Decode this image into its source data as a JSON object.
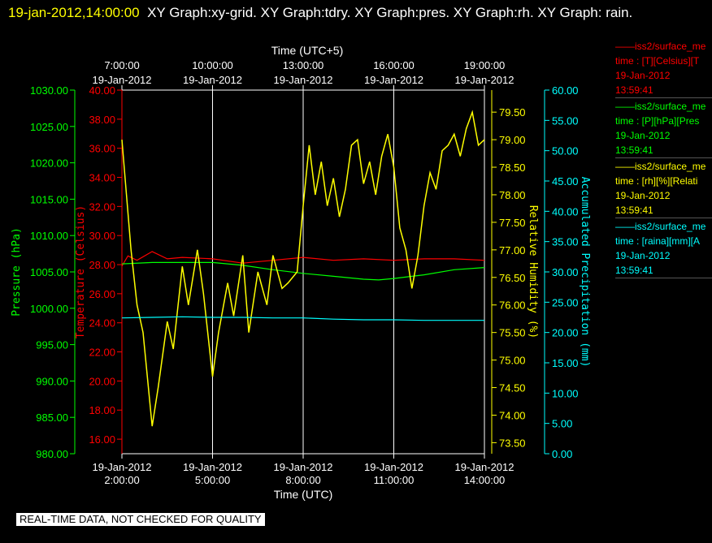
{
  "header": {
    "timestamp": "19-jan-2012,14:00:00",
    "title": "XY Graph:xy-grid.  XY Graph:tdry.  XY Graph:pres.  XY Graph:rh.  XY Graph: rain."
  },
  "footer": {
    "notice": "REAL-TIME DATA, NOT CHECKED FOR QUALITY"
  },
  "colors": {
    "temperature": "#ff0000",
    "pressure": "#00ff00",
    "humidity": "#ffff00",
    "precip": "#00ffff",
    "grid": "#ffffff"
  },
  "legend": [
    {
      "line1": "iss2/surface_me",
      "line2": "time : [T][Celsius][T",
      "line3": "19-Jan-2012",
      "line4": "13:59:41",
      "color": "#ff0000"
    },
    {
      "line1": "iss2/surface_me",
      "line2": "time : [P][hPa][Pres",
      "line3": "19-Jan-2012",
      "line4": "13:59:41",
      "color": "#00ff00"
    },
    {
      "line1": "iss2/surface_me",
      "line2": "time : [rh][%][Relati",
      "line3": "19-Jan-2012",
      "line4": "13:59:41",
      "color": "#ffff00"
    },
    {
      "line1": "iss2/surface_me",
      "line2": "time : [raina][mm][A",
      "line3": "19-Jan-2012",
      "line4": "13:59:41",
      "color": "#00ffff"
    }
  ],
  "chart_data": {
    "type": "line",
    "xlabel_bottom": "Time (UTC)",
    "xlabel_top": "Time (UTC+5)",
    "x_range_hours_utc": [
      2,
      14
    ],
    "x_ticks_bottom": [
      {
        "h": 2,
        "date": "19-Jan-2012",
        "time": "2:00:00"
      },
      {
        "h": 5,
        "date": "19-Jan-2012",
        "time": "5:00:00"
      },
      {
        "h": 8,
        "date": "19-Jan-2012",
        "time": "8:00:00"
      },
      {
        "h": 11,
        "date": "19-Jan-2012",
        "time": "11:00:00"
      },
      {
        "h": 14,
        "date": "19-Jan-2012",
        "time": "14:00:00"
      }
    ],
    "x_ticks_top": [
      {
        "h": 2,
        "date": "19-Jan-2012",
        "time": "7:00:00"
      },
      {
        "h": 5,
        "date": "19-Jan-2012",
        "time": "10:00:00"
      },
      {
        "h": 8,
        "date": "19-Jan-2012",
        "time": "13:00:00"
      },
      {
        "h": 11,
        "date": "19-Jan-2012",
        "time": "16:00:00"
      },
      {
        "h": 14,
        "date": "19-Jan-2012",
        "time": "19:00:00"
      }
    ],
    "axes": {
      "pressure": {
        "label": "Pressure (hPa)",
        "ylim": [
          980,
          1030
        ],
        "ticks": [
          "980.00",
          "985.00",
          "990.00",
          "995.00",
          "1000.00",
          "1005.00",
          "1010.00",
          "1015.00",
          "1020.00",
          "1025.00",
          "1030.00"
        ]
      },
      "temperature": {
        "label": "Temperature (Celsius)",
        "ylim": [
          15,
          40
        ],
        "ticks": [
          "16.00",
          "18.00",
          "20.00",
          "22.00",
          "24.00",
          "26.00",
          "28.00",
          "30.00",
          "32.00",
          "34.00",
          "36.00",
          "38.00",
          "40.00"
        ]
      },
      "humidity": {
        "label": "Relative Humidity (%)",
        "ylim": [
          73.3,
          79.9
        ],
        "ticks": [
          "73.50",
          "74.00",
          "74.50",
          "75.00",
          "75.50",
          "76.00",
          "76.50",
          "77.00",
          "77.50",
          "78.00",
          "78.50",
          "79.00",
          "79.50"
        ]
      },
      "precip": {
        "label": "Accumulated Precipitation (mm)",
        "ylim": [
          0,
          60
        ],
        "ticks": [
          "0.00",
          "5.00",
          "10.00",
          "15.00",
          "20.00",
          "25.00",
          "30.00",
          "35.00",
          "40.00",
          "45.00",
          "50.00",
          "55.00",
          "60.00"
        ]
      }
    },
    "series": [
      {
        "name": "T [Celsius]",
        "axis": "temperature",
        "x": [
          2,
          2.2,
          2.5,
          3,
          3.5,
          4,
          5,
          6,
          7,
          8,
          9,
          10,
          11,
          12,
          13,
          14
        ],
        "y": [
          27.9,
          28.6,
          28.3,
          28.9,
          28.4,
          28.5,
          28.4,
          28.1,
          28.3,
          28.5,
          28.3,
          28.4,
          28.3,
          28.4,
          28.4,
          28.3
        ]
      },
      {
        "name": "P [hPa]",
        "axis": "pressure",
        "x": [
          2,
          3,
          4,
          5,
          6,
          7,
          8,
          9,
          10,
          10.5,
          11,
          12,
          13,
          14
        ],
        "y": [
          1006.1,
          1006.3,
          1006.3,
          1006.3,
          1005.9,
          1005.3,
          1004.8,
          1004.4,
          1004.0,
          1003.9,
          1004.1,
          1004.6,
          1005.3,
          1005.6
        ]
      },
      {
        "name": "rh [%]",
        "axis": "humidity",
        "x": [
          2,
          2.15,
          2.3,
          2.5,
          2.7,
          3,
          3.2,
          3.5,
          3.7,
          4,
          4.2,
          4.5,
          4.7,
          5,
          5.2,
          5.5,
          5.7,
          6,
          6.2,
          6.5,
          6.8,
          7,
          7.3,
          7.5,
          7.8,
          8,
          8.2,
          8.4,
          8.6,
          8.8,
          9,
          9.2,
          9.4,
          9.6,
          9.8,
          10,
          10.2,
          10.4,
          10.6,
          10.8,
          11,
          11.2,
          11.4,
          11.6,
          11.8,
          12,
          12.2,
          12.4,
          12.6,
          12.8,
          13,
          13.2,
          13.4,
          13.6,
          13.8,
          14
        ],
        "y": [
          79.0,
          78.0,
          77.0,
          76.0,
          75.5,
          73.8,
          74.5,
          75.7,
          75.2,
          76.7,
          76.0,
          77.0,
          76.2,
          74.7,
          75.5,
          76.4,
          75.8,
          76.9,
          75.5,
          76.6,
          76.0,
          76.9,
          76.3,
          76.4,
          76.6,
          77.8,
          78.9,
          78.0,
          78.6,
          77.8,
          78.3,
          77.6,
          78.1,
          78.9,
          79.0,
          78.2,
          78.6,
          78.0,
          78.7,
          79.1,
          78.5,
          77.4,
          77.0,
          76.3,
          76.9,
          77.8,
          78.4,
          78.1,
          78.8,
          78.9,
          79.1,
          78.7,
          79.2,
          79.5,
          78.9,
          79.0
        ]
      },
      {
        "name": "raina [mm]",
        "axis": "precip",
        "x": [
          2,
          3,
          4,
          5,
          6,
          7,
          8,
          9,
          10,
          11,
          12,
          13,
          14
        ],
        "y": [
          22.4,
          22.5,
          22.6,
          22.5,
          22.5,
          22.4,
          22.4,
          22.2,
          22.1,
          22.1,
          22.0,
          22.0,
          22.0
        ]
      }
    ]
  }
}
